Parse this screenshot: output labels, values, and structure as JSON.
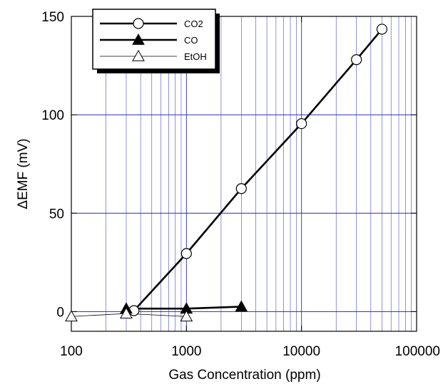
{
  "chart_data": {
    "type": "line",
    "xscale": "log",
    "xlim": [
      100,
      100000
    ],
    "ylim": [
      -10,
      150
    ],
    "xlabel": "Gas Concentration (ppm)",
    "ylabel": "ΔEMF (mV)",
    "x_ticks": [
      100,
      1000,
      10000,
      100000
    ],
    "x_tick_labels": [
      "100",
      "1000",
      "10000",
      "100000"
    ],
    "y_ticks": [
      0,
      50,
      100,
      150
    ],
    "y_tick_labels": [
      "0",
      "50",
      "100",
      "150"
    ],
    "grid": true,
    "legend_position": "top-left",
    "colors": {
      "frame": "#000000",
      "grid": "#2b2bb0",
      "series": "#000000"
    },
    "series": [
      {
        "name": "CO2",
        "marker": "open-circle",
        "line": "thick",
        "x": [
          350,
          1000,
          3000,
          10000,
          30000,
          50000
        ],
        "y": [
          0.5,
          29.5,
          62.5,
          95.5,
          128,
          143.5
        ]
      },
      {
        "name": "CO",
        "marker": "filled-triangle",
        "line": "thick",
        "x": [
          300,
          1000,
          3000
        ],
        "y": [
          1.5,
          1.5,
          2.5
        ]
      },
      {
        "name": "EtOH",
        "marker": "open-triangle",
        "line": "thin",
        "x": [
          100,
          300,
          1000
        ],
        "y": [
          -2.5,
          -1,
          -2.5
        ]
      }
    ]
  }
}
